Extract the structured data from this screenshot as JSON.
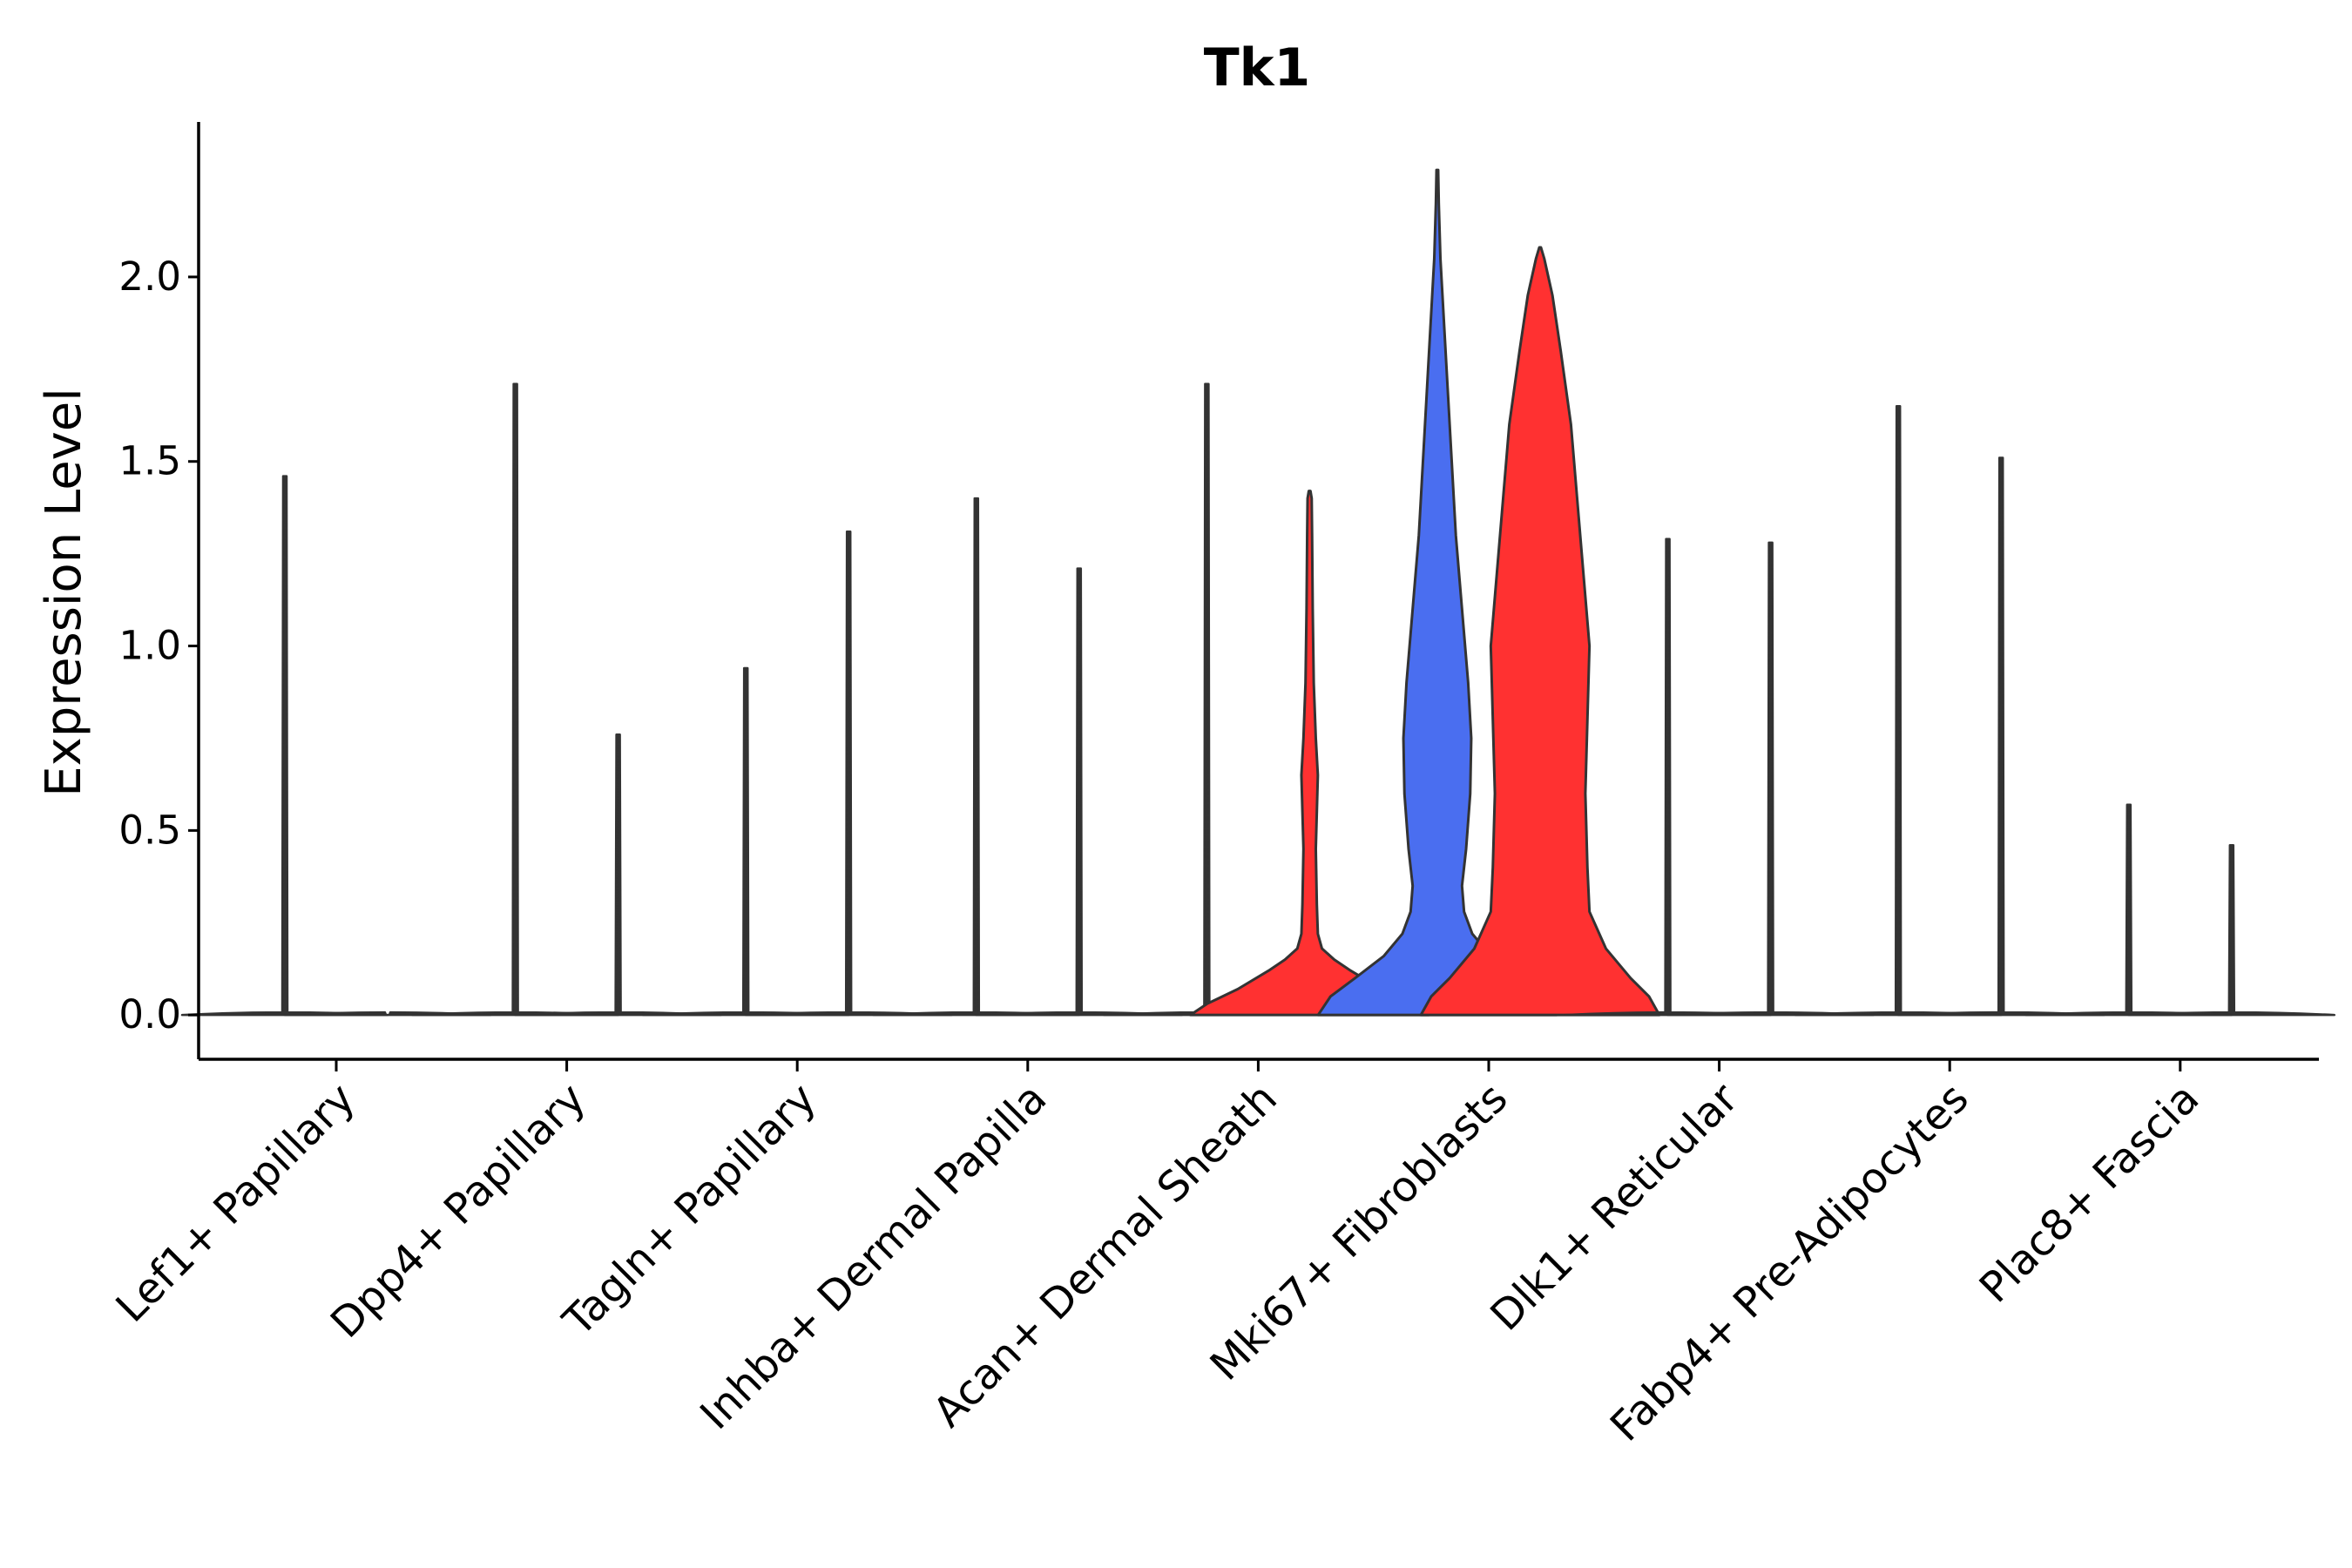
{
  "chart_data": {
    "type": "violin",
    "title": "Tk1",
    "xlabel": "",
    "ylabel": "Expression Level",
    "ylim": [
      -0.12,
      2.42
    ],
    "yticks": [
      0.0,
      0.5,
      1.0,
      1.5,
      2.0
    ],
    "ytick_labels": [
      "0.0",
      "0.5",
      "1.0",
      "1.5",
      "2.0"
    ],
    "categories": [
      "Lef1+ Papillary",
      "Dpp4+ Papillary",
      "Tagln+ Papillary",
      "Inhba+ Dermal Papilla",
      "Acan+ Dermal Sheath",
      "Mki67+ Fibroblasts",
      "Dlk1+ Reticular",
      "Fabp4+ Pre-Adipocytes",
      "Plac8+ Fascia"
    ],
    "series": [
      {
        "name": "group 1",
        "color": "#4a6ef0",
        "max_values": [
          1.46,
          1.71,
          0.94,
          1.4,
          1.71,
          2.29,
          1.29,
          1.65,
          0.57
        ],
        "shapes": [
          "thin",
          "thin",
          "thin",
          "thin",
          "thin",
          "mki67_blue",
          "thin",
          "thin",
          "thin"
        ]
      },
      {
        "name": "group 2",
        "color": "#ff3131",
        "max_values": [
          0.0,
          0.76,
          1.31,
          1.21,
          1.42,
          2.08,
          1.28,
          1.51,
          0.46
        ],
        "shapes": [
          "thin",
          "thin",
          "thin",
          "thin",
          "acan_red",
          "mki67_red",
          "thin",
          "thin",
          "thin"
        ]
      }
    ],
    "legend": "none",
    "grid": false
  }
}
